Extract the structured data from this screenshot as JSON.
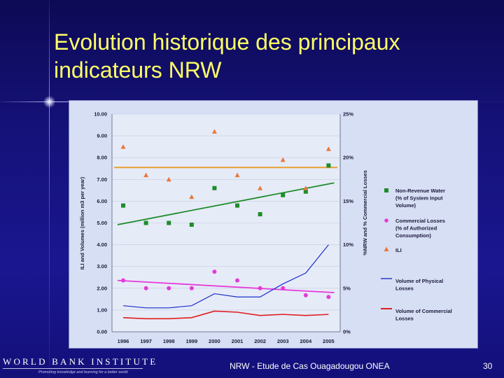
{
  "slide": {
    "title": "Evolution historique des principaux indicateurs NRW",
    "footer": "NRW - Etude de Cas Ouagadougou ONEA",
    "page_number": "30",
    "logo": {
      "name": "WORLD BANK INSTITUTE",
      "tagline": "Promoting knowledge and learning for a better world"
    }
  },
  "colors": {
    "title": "#ffff66",
    "nrw": "#1e8c2a",
    "commercial": "#e53ad8",
    "ili": "#e8783c",
    "physical_volume": "#1c2ec8",
    "commercial_volume": "#e01e1e",
    "ili_reference": "#e8a030"
  },
  "chart_data": {
    "type": "line",
    "categories": [
      "1996",
      "1997",
      "1998",
      "1999",
      "2000",
      "2001",
      "2002",
      "2003",
      "2004",
      "2005"
    ],
    "ylabel": "ILI and Volumes (million m3 per year)",
    "y2label": "%NRW and % Commercial Losses",
    "ylim": [
      0,
      10
    ],
    "y2lim": [
      0,
      25
    ],
    "yticks": [
      "0.00",
      "1.00",
      "2.00",
      "3.00",
      "4.00",
      "5.00",
      "6.00",
      "7.00",
      "8.00",
      "9.00",
      "10.00"
    ],
    "y2ticks": [
      "0%",
      "5%",
      "10%",
      "15%",
      "20%",
      "25%"
    ],
    "legend_position": "right",
    "series": [
      {
        "name": "Non-Revenue Water (% of System Input Volume)",
        "axis": "right",
        "kind": "markers",
        "marker": "square",
        "values": [
          14.5,
          12.5,
          12.5,
          12.3,
          16.5,
          14.5,
          13.5,
          15.7,
          16.1,
          19.1
        ],
        "trend": [
          12.3,
          17.1
        ]
      },
      {
        "name": "Commercial Losses (% of Authorized Consumption)",
        "axis": "right",
        "kind": "markers",
        "marker": "circle",
        "values": [
          5.9,
          5.0,
          5.0,
          5.0,
          6.9,
          5.9,
          5.0,
          5.0,
          4.2,
          4.0
        ],
        "trend": [
          5.9,
          4.5
        ]
      },
      {
        "name": "ILI",
        "axis": "left",
        "kind": "markers",
        "marker": "triangle",
        "values": [
          8.5,
          7.2,
          7.0,
          6.2,
          9.2,
          7.2,
          6.6,
          7.9,
          6.6,
          8.4
        ],
        "reference": 7.55
      },
      {
        "name": "Volume of Physical Losses",
        "axis": "left",
        "kind": "line",
        "values": [
          1.2,
          1.1,
          1.1,
          1.2,
          1.75,
          1.6,
          1.6,
          2.2,
          2.7,
          4.0
        ]
      },
      {
        "name": "Volume of Commercial Losses",
        "axis": "left",
        "kind": "line",
        "values": [
          0.65,
          0.6,
          0.6,
          0.65,
          0.95,
          0.9,
          0.75,
          0.8,
          0.75,
          0.8
        ]
      }
    ]
  }
}
